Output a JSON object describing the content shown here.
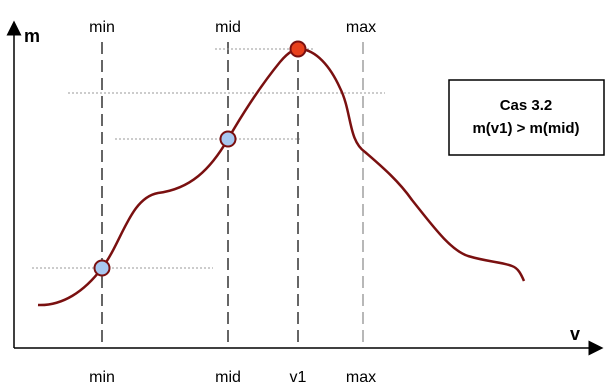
{
  "axes": {
    "y_label": "m",
    "x_label": "v"
  },
  "markers": {
    "min_top": "min",
    "mid_top": "mid",
    "max_top": "max",
    "min_bottom": "min",
    "mid_bottom": "mid",
    "v1_bottom": "v1",
    "max_bottom": "max"
  },
  "case_box": {
    "title": "Cas 3.2",
    "condition": "m(v1) > m(mid)"
  },
  "colors": {
    "curve": "#7a1010",
    "point_fill": "#a8c8f0",
    "peak_fill": "#e8401c",
    "point_stroke": "#7a1010",
    "dashed_line": "#000000",
    "dotted_line": "#999999"
  }
}
